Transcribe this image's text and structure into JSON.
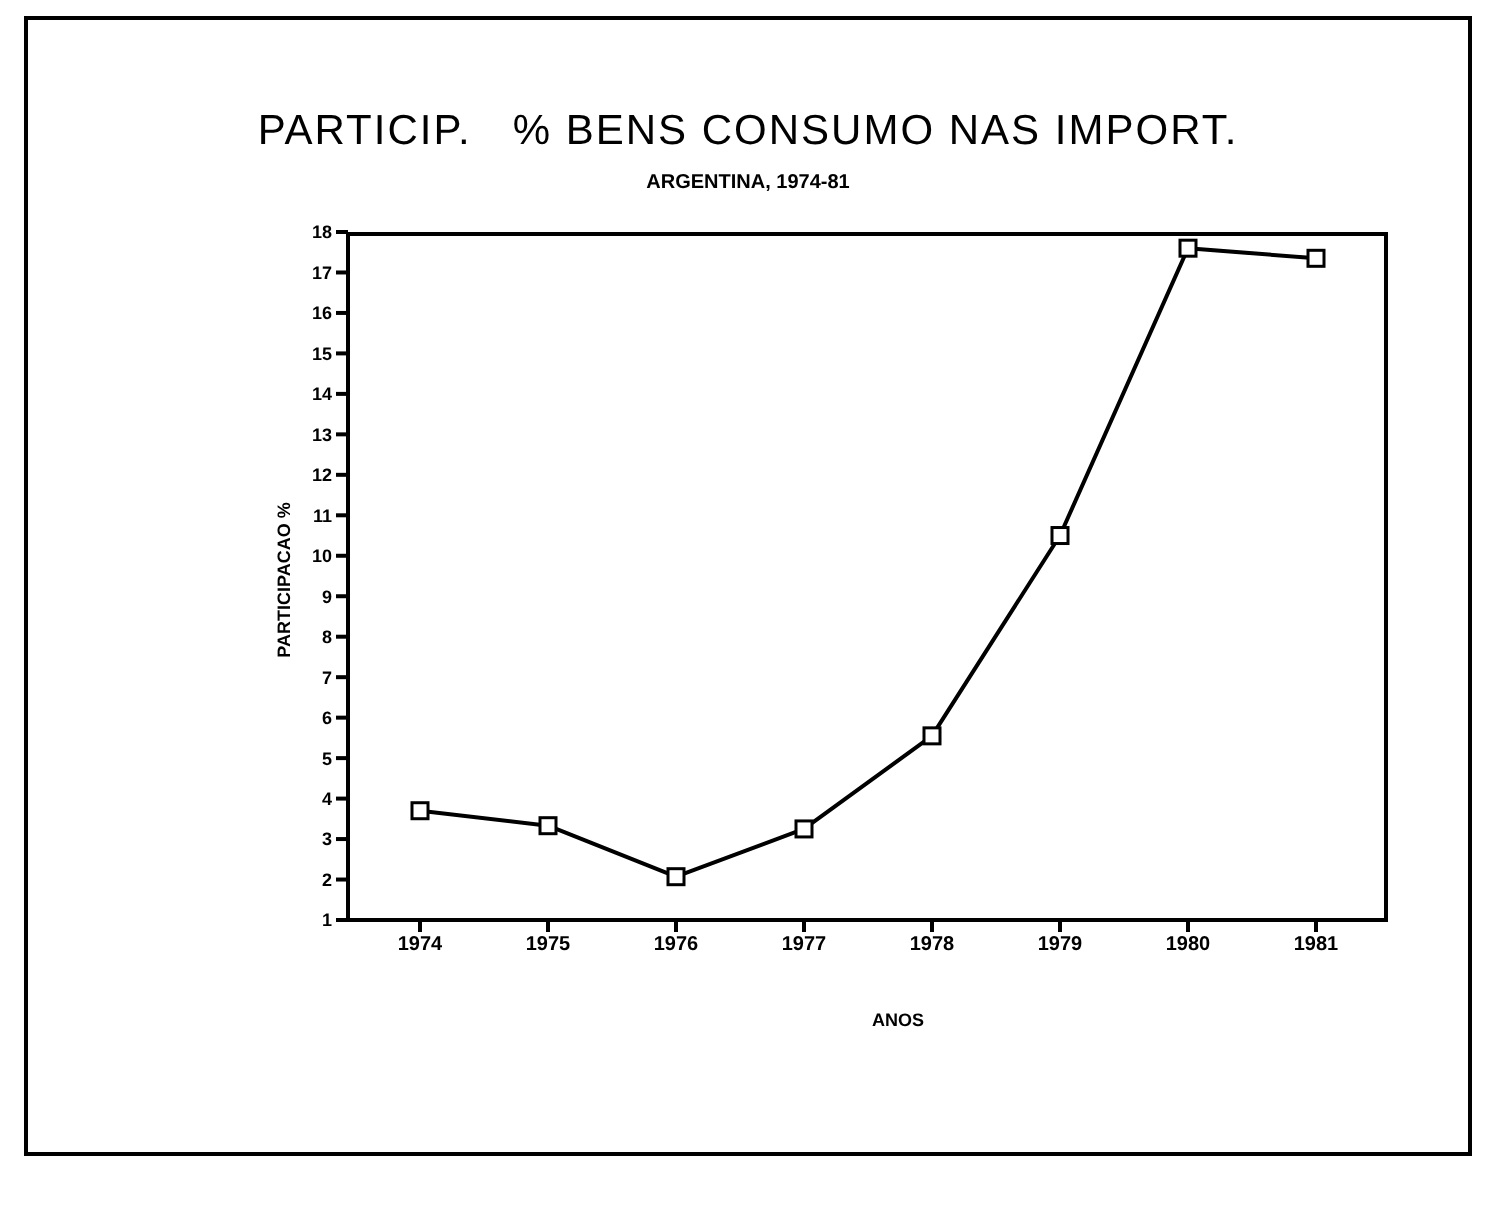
{
  "chart_data": {
    "type": "line",
    "title": "PARTICIP.   % BENS CONSUMO NAS IMPORT.",
    "subtitle": "ARGENTINA, 1974-81",
    "xlabel": "ANOS",
    "ylabel": "PARTICIPACAO %",
    "categories": [
      "1974",
      "1975",
      "1976",
      "1977",
      "1978",
      "1979",
      "1980",
      "1981"
    ],
    "series": [
      {
        "color": "#000000",
        "values": [
          3.7,
          3.33,
          2.07,
          3.25,
          5.55,
          10.5,
          17.6,
          17.35
        ]
      }
    ],
    "ylim": [
      1,
      18
    ],
    "yticks": [
      1,
      2,
      3,
      4,
      5,
      6,
      7,
      8,
      9,
      10,
      11,
      12,
      13,
      14,
      15,
      16,
      17,
      18
    ],
    "marker": "square",
    "line_style": "solid",
    "grid": false,
    "legend": false
  }
}
